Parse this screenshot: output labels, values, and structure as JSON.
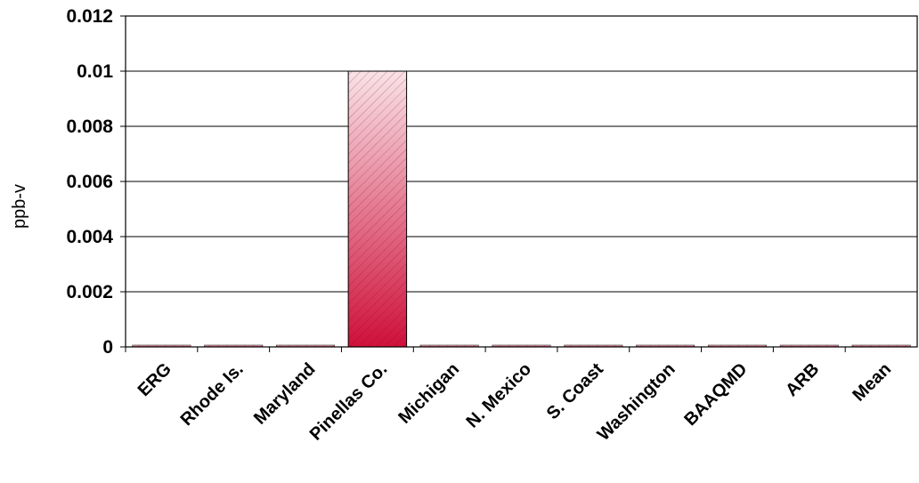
{
  "chart_data": {
    "type": "bar",
    "ylabel": "ppb-v",
    "xlabel": "",
    "title": "",
    "categories": [
      "ERG",
      "Rhode Is.",
      "Maryland",
      "Pinellas Co.",
      "Michigan",
      "N. Mexico",
      "S. Coast",
      "Washington",
      "BAAQMD",
      "ARB",
      "Mean"
    ],
    "values": [
      0,
      0,
      0,
      0.01,
      0,
      0,
      0,
      0,
      0,
      0,
      0
    ],
    "ylim": [
      0,
      0.012
    ],
    "yticks": [
      0,
      0.002,
      0.004,
      0.006,
      0.008,
      0.01,
      0.012
    ],
    "ytick_labels": [
      "0",
      "0.002",
      "0.004",
      "0.006",
      "0.008",
      "0.01",
      "0.012"
    ],
    "grid": true,
    "legend": "none",
    "bar_color_top": "#f9e3e8",
    "bar_color_bottom": "#d0103a",
    "hatch": "diagonal"
  }
}
